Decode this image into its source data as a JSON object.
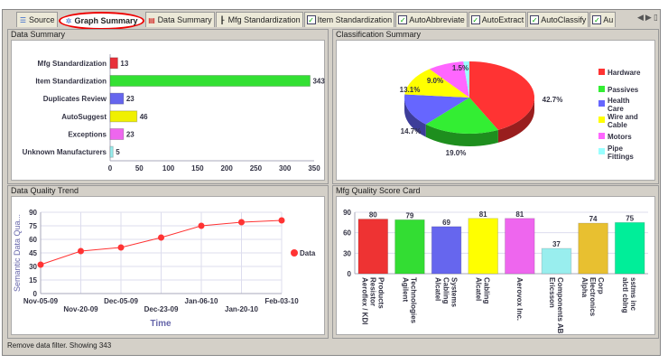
{
  "tabs": [
    {
      "label": "Source",
      "icon": "list-icon"
    },
    {
      "label": "Graph Summary",
      "icon": "graph-icon",
      "active": true
    },
    {
      "label": "Data Summary",
      "icon": "data-summary-icon"
    },
    {
      "label": "Mfg Standardization",
      "icon": "tree-icon"
    },
    {
      "label": "Item Standardization",
      "icon": "check-icon"
    },
    {
      "label": "AutoAbbreviate",
      "icon": "check-icon"
    },
    {
      "label": "AutoExtract",
      "icon": "check-icon"
    },
    {
      "label": "AutoClassify",
      "icon": "check-icon"
    },
    {
      "label": "Au",
      "icon": "check-icon"
    }
  ],
  "panels": {
    "data_summary": "Data Summary",
    "classification": "Classification Summary",
    "trend": "Data Quality Trend",
    "scorecard": "Mfg Quality Score Card"
  },
  "status": "Remove data filter. Showing 343",
  "chart_data": [
    {
      "type": "bar",
      "orientation": "horizontal",
      "title": "Data Summary",
      "categories": [
        "Mfg Standardization",
        "Item Standardization",
        "Duplicates Review",
        "AutoSuggest",
        "Exceptions",
        "Unknown Manufacturers"
      ],
      "values": [
        13,
        343,
        23,
        46,
        23,
        5
      ],
      "colors": [
        "#e8303a",
        "#33e033",
        "#6666ee",
        "#f0f000",
        "#ee66ee",
        "#99eeee"
      ],
      "xlim": [
        0,
        350
      ],
      "xticks": [
        0,
        50,
        100,
        150,
        200,
        250,
        300,
        350
      ]
    },
    {
      "type": "pie",
      "title": "Classification Summary",
      "categories": [
        "Hardware",
        "Passives",
        "Health Care",
        "Wire and Cable",
        "Motors",
        "Pipe Fittings"
      ],
      "values": [
        42.7,
        19.0,
        14.7,
        13.1,
        9.0,
        1.5
      ],
      "labels": [
        "42.7%",
        "19.0%",
        "14.7%",
        "13.1%",
        "9.0%",
        "1.5%"
      ],
      "colors": [
        "#ff3333",
        "#33ee33",
        "#6666ff",
        "#ffff00",
        "#ff66ff",
        "#99ffff"
      ],
      "legend": "right"
    },
    {
      "type": "line",
      "title": "Data Quality Trend",
      "x": [
        "Nov-05-09",
        "Nov-20-09",
        "Dec-05-09",
        "Dec-23-09",
        "Jan-06-10",
        "Jan-20-10",
        "Feb-03-10"
      ],
      "y": [
        32,
        47,
        51,
        62,
        75,
        79,
        81
      ],
      "xlabel": "Time",
      "ylabel": "Semantic Data Qua...",
      "ylim": [
        0,
        90
      ],
      "yticks": [
        0,
        15,
        30,
        45,
        60,
        75,
        90
      ],
      "series_name": "Data",
      "color": "#ff3333",
      "legend": "right"
    },
    {
      "type": "bar",
      "title": "Mfg Quality Score Card",
      "categories": [
        "Aeroflex / KDI Resistor Products",
        "Agilent Technologies",
        "Alcatel Cabling Systems",
        "Alcatel Cabling",
        "Aerovox Inc.",
        "Ericsson Components AB",
        "Alpha Electronics Corp",
        "alctl cblng sstms inc"
      ],
      "values": [
        80,
        79,
        69,
        81,
        81,
        37,
        74,
        75
      ],
      "colors": [
        "#ee3333",
        "#33dd33",
        "#6666ee",
        "#ffff00",
        "#ee66ee",
        "#99eeee",
        "#e8c030",
        "#00ee99"
      ],
      "ylim": [
        0,
        90
      ],
      "yticks": [
        0,
        30,
        60,
        90
      ]
    }
  ]
}
